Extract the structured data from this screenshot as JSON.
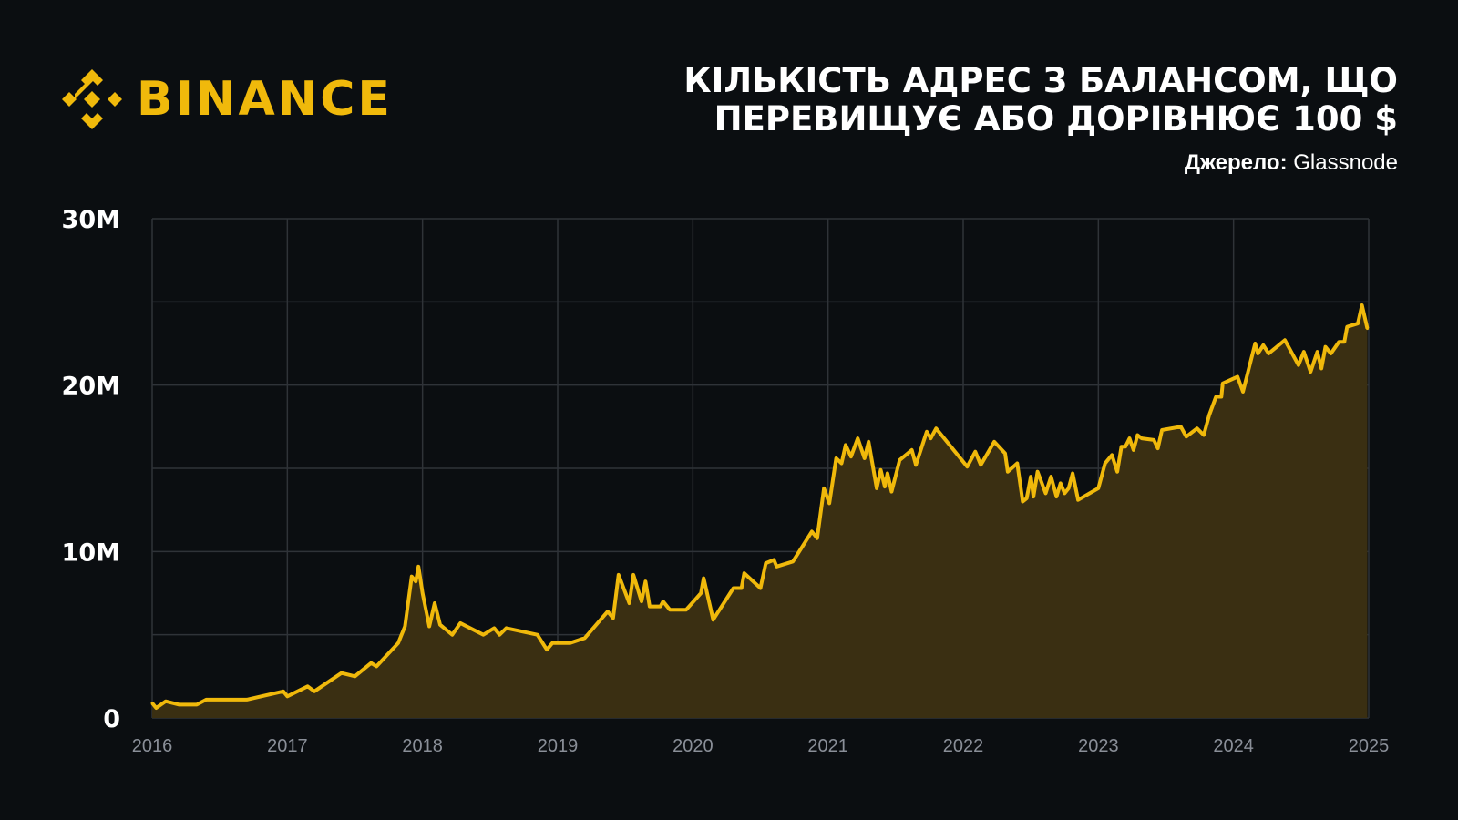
{
  "brand": {
    "name": "BINANCE",
    "color": "#f0b90b"
  },
  "header": {
    "title_line1": "Кількість адрес з балансом, що",
    "title_line2": "перевищує або дорівнює 100 $",
    "source_label": "Джерело:",
    "source_value": "Glassnode"
  },
  "chart_data": {
    "type": "area",
    "line_color": "#f0b90b",
    "fill_color": "#3a2f12",
    "grid": true,
    "ylim": [
      0,
      30000000
    ],
    "y_ticks": [
      {
        "value": 0,
        "label": "0"
      },
      {
        "value": 10000000,
        "label": "10M"
      },
      {
        "value": 20000000,
        "label": "20M"
      },
      {
        "value": 30000000,
        "label": "30M"
      }
    ],
    "y_grid_values": [
      0,
      5000000,
      10000000,
      15000000,
      20000000,
      25000000,
      30000000
    ],
    "xlim": [
      2016,
      2025
    ],
    "x_ticks": [
      "2016",
      "2017",
      "2018",
      "2019",
      "2020",
      "2021",
      "2022",
      "2023",
      "2024",
      "2025"
    ],
    "series": [
      {
        "x": [
          2016.0,
          2016.03,
          2016.1,
          2016.2,
          2016.33,
          2016.4,
          2016.7,
          2016.97,
          2017.0,
          2017.15,
          2017.2,
          2017.4,
          2017.5,
          2017.62,
          2017.66,
          2017.82,
          2017.87,
          2017.92,
          2017.95,
          2017.97,
          2018.0,
          2018.05,
          2018.09,
          2018.13,
          2018.16,
          2018.22,
          2018.28,
          2018.45,
          2018.53,
          2018.57,
          2018.62,
          2018.85,
          2018.92,
          2018.96,
          2019.09,
          2019.2,
          2019.37,
          2019.41,
          2019.45,
          2019.53,
          2019.56,
          2019.62,
          2019.65,
          2019.68,
          2019.76,
          2019.78,
          2019.83,
          2019.95,
          2020.06,
          2020.08,
          2020.15,
          2020.3,
          2020.36,
          2020.38,
          2020.5,
          2020.54,
          2020.6,
          2020.62,
          2020.74,
          2020.88,
          2020.92,
          2020.97,
          2021.01,
          2021.06,
          2021.1,
          2021.13,
          2021.17,
          2021.22,
          2021.27,
          2021.3,
          2021.36,
          2021.39,
          2021.42,
          2021.44,
          2021.47,
          2021.53,
          2021.62,
          2021.65,
          2021.73,
          2021.76,
          2021.8,
          2022.03,
          2022.09,
          2022.13,
          2022.23,
          2022.31,
          2022.33,
          2022.4,
          2022.44,
          2022.47,
          2022.5,
          2022.52,
          2022.55,
          2022.61,
          2022.65,
          2022.69,
          2022.72,
          2022.75,
          2022.78,
          2022.81,
          2022.85,
          2023.0,
          2023.05,
          2023.1,
          2023.14,
          2023.17,
          2023.2,
          2023.23,
          2023.26,
          2023.29,
          2023.32,
          2023.41,
          2023.44,
          2023.47,
          2023.61,
          2023.65,
          2023.73,
          2023.78,
          2023.82,
          2023.87,
          2023.91,
          2023.92,
          2024.03,
          2024.07,
          2024.16,
          2024.18,
          2024.22,
          2024.26,
          2024.38,
          2024.48,
          2024.52,
          2024.57,
          2024.62,
          2024.65,
          2024.68,
          2024.72,
          2024.78,
          2024.82,
          2024.84,
          2024.92,
          2024.95,
          2024.99
        ],
        "y": [
          900000,
          600000,
          1000000,
          800000,
          800000,
          1100000,
          1100000,
          1600000,
          1300000,
          1900000,
          1600000,
          2700000,
          2500000,
          3300000,
          3100000,
          4500000,
          5500000,
          8500000,
          8200000,
          9100000,
          7500000,
          5500000,
          6900000,
          5600000,
          5400000,
          5000000,
          5700000,
          5000000,
          5400000,
          5000000,
          5400000,
          5000000,
          4100000,
          4500000,
          4500000,
          4800000,
          6400000,
          6000000,
          8600000,
          6900000,
          8600000,
          7000000,
          8200000,
          6700000,
          6700000,
          7000000,
          6500000,
          6500000,
          7500000,
          8400000,
          5900000,
          7800000,
          7800000,
          8700000,
          7800000,
          9300000,
          9500000,
          9100000,
          9400000,
          11200000,
          10800000,
          13800000,
          12900000,
          15600000,
          15300000,
          16400000,
          15700000,
          16800000,
          15600000,
          16600000,
          13800000,
          14900000,
          13900000,
          14700000,
          13600000,
          15500000,
          16100000,
          15200000,
          17200000,
          16800000,
          17400000,
          15100000,
          16000000,
          15200000,
          16600000,
          15900000,
          14800000,
          15300000,
          13000000,
          13200000,
          14500000,
          13300000,
          14800000,
          13500000,
          14500000,
          13300000,
          14100000,
          13500000,
          13800000,
          14700000,
          13100000,
          13800000,
          15300000,
          15800000,
          14800000,
          16300000,
          16300000,
          16800000,
          16100000,
          17000000,
          16800000,
          16700000,
          16200000,
          17300000,
          17500000,
          16900000,
          17400000,
          17000000,
          18200000,
          19300000,
          19300000,
          20100000,
          20500000,
          19600000,
          22500000,
          21900000,
          22400000,
          21900000,
          22700000,
          21200000,
          22000000,
          20800000,
          22000000,
          21000000,
          22300000,
          21900000,
          22600000,
          22600000,
          23500000,
          23700000,
          24800000,
          23400000
        ]
      }
    ]
  }
}
